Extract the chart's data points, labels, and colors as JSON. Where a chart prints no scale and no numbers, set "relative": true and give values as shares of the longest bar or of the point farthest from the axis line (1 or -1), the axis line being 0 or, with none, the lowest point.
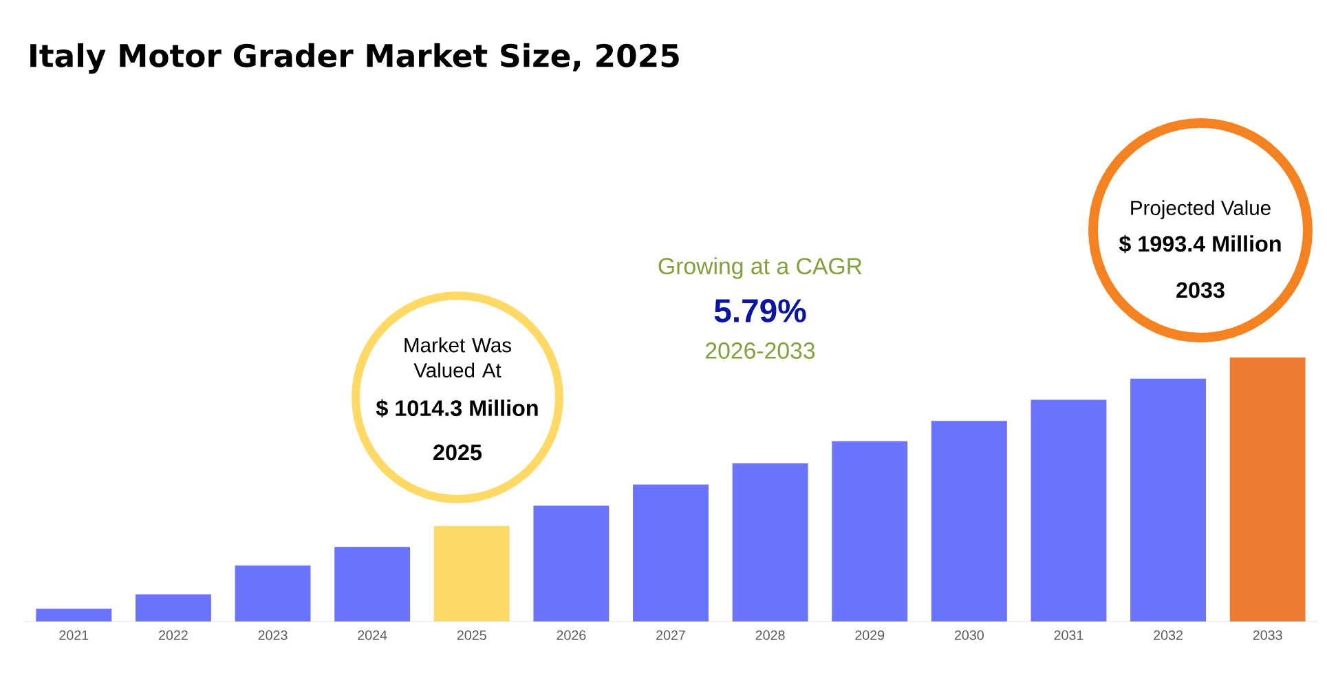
{
  "chart_data": {
    "type": "bar",
    "title": "Italy Motor Grader Market Size, 2025",
    "categories": [
      "2021",
      "2022",
      "2023",
      "2024",
      "2025",
      "2026",
      "2027",
      "2028",
      "2029",
      "2030",
      "2031",
      "2032",
      "2033"
    ],
    "values": [
      0.048,
      0.103,
      0.212,
      0.282,
      0.362,
      0.439,
      0.519,
      0.599,
      0.683,
      0.76,
      0.84,
      0.92,
      1
    ],
    "colors": [
      "#6b73fb",
      "#6b73fb",
      "#6b73fb",
      "#6b73fb",
      "#fdd96a",
      "#6b73fb",
      "#6b73fb",
      "#6b73fb",
      "#6b73fb",
      "#6b73fb",
      "#6b73fb",
      "#6b73fb",
      "#ed7d31"
    ],
    "relative": true,
    "annotations": [
      "Market Was Valued At",
      "$ 1014.3 Million",
      "2025",
      "Growing at a CAGR",
      "5.79%",
      "2026-2033",
      "Projected Value",
      "$ 1993.4 Million",
      "2033"
    ]
  }
}
